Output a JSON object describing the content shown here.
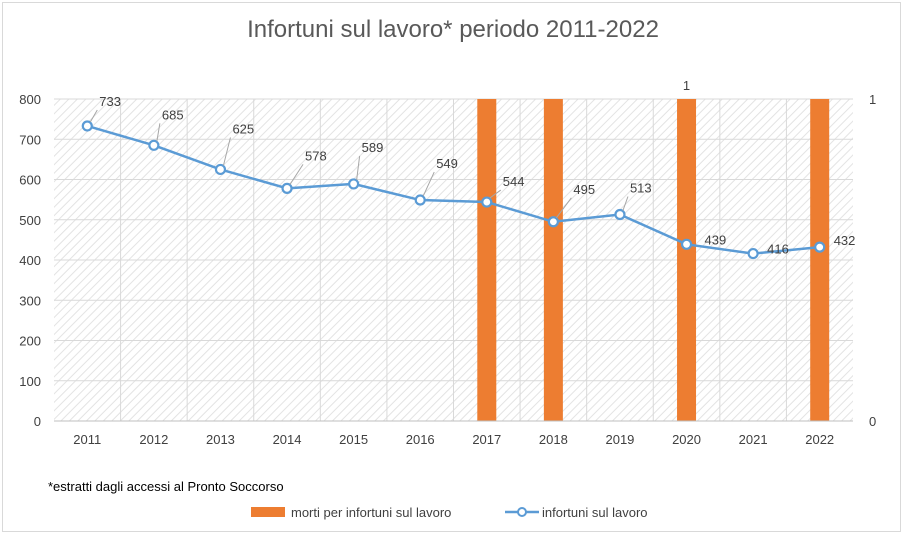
{
  "chart_data": {
    "type": "bar+line",
    "title": "Infortuni sul lavoro*  periodo 2011-2022",
    "categories": [
      "2011",
      "2012",
      "2013",
      "2014",
      "2015",
      "2016",
      "2017",
      "2018",
      "2019",
      "2020",
      "2021",
      "2022"
    ],
    "series": [
      {
        "name": "morti per infortuni sul lavoro",
        "type": "bar",
        "axis": "secondary",
        "color": "#ed7d31",
        "values": [
          0,
          0,
          0,
          0,
          0,
          0,
          1,
          1,
          0,
          1,
          0,
          1
        ],
        "data_labels": {
          "2020": "1"
        }
      },
      {
        "name": "infortuni sul lavoro",
        "type": "line",
        "axis": "primary",
        "color": "#5b9bd5",
        "values": [
          733,
          685,
          625,
          578,
          589,
          549,
          544,
          495,
          513,
          439,
          416,
          432
        ],
        "data_labels": [
          "733",
          "685",
          "625",
          "578",
          "589",
          "549",
          "544",
          "495",
          "513",
          "439",
          "416",
          "432"
        ]
      }
    ],
    "y_primary": {
      "min": 0,
      "max": 800,
      "ticks": [
        "0",
        "100",
        "200",
        "300",
        "400",
        "500",
        "600",
        "700",
        "800"
      ]
    },
    "y_secondary": {
      "min": 0,
      "max": 1,
      "ticks": [
        "0",
        "1"
      ]
    },
    "grid": true,
    "legend": "bottom",
    "footnote": "*estratti dagli accessi al Pronto Soccorso"
  }
}
